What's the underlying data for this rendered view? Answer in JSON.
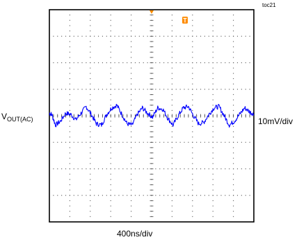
{
  "figure_id": "toc21",
  "left_label": {
    "main": "V",
    "sub": "OUT(AC)"
  },
  "right_label": "10mV/div",
  "x_label": "400ns/div",
  "chart_data": {
    "type": "line",
    "title": "",
    "xlabel": "400ns/div",
    "ylabel": "10mV/div",
    "grid": true,
    "x_divisions": 10,
    "y_divisions": 8,
    "x_unit": "div",
    "y_unit": "div",
    "xlim": [
      0,
      10
    ],
    "ylim": [
      -4,
      4
    ],
    "series": [
      {
        "name": "VOUT(AC)",
        "color": "#0000ff",
        "x": [
          0,
          0.12,
          0.3,
          0.55,
          0.8,
          1.05,
          1.3,
          1.55,
          1.8,
          2.05,
          2.3,
          2.55,
          2.8,
          3.05,
          3.3,
          3.55,
          3.8,
          4.05,
          4.3,
          4.55,
          4.8,
          5.05,
          5.3,
          5.55,
          5.8,
          6.05,
          6.3,
          6.55,
          6.8,
          7.05,
          7.3,
          7.55,
          7.8,
          8.05,
          8.3,
          8.55,
          8.8,
          9.05,
          9.3,
          9.55,
          9.8,
          10
        ],
        "y": [
          0.1,
          0.05,
          -0.35,
          -0.2,
          0.1,
          0.05,
          -0.15,
          0.1,
          0.35,
          0.05,
          -0.3,
          -0.35,
          0.05,
          0.3,
          0.4,
          0.05,
          -0.3,
          -0.35,
          0.05,
          0.3,
          0.1,
          -0.05,
          0.3,
          0.25,
          -0.1,
          -0.35,
          0.0,
          0.3,
          0.35,
          0.0,
          -0.3,
          -0.25,
          0.05,
          0.3,
          0.35,
          0.0,
          -0.35,
          -0.2,
          0.05,
          0.3,
          0.15,
          0.05
        ]
      }
    ],
    "markers": {
      "trigger_color": "#ff8c00"
    }
  }
}
